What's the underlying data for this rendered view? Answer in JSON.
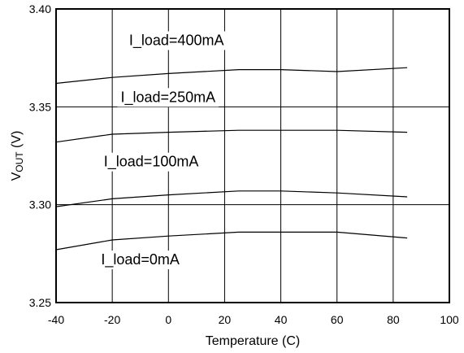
{
  "chart_data": {
    "type": "line",
    "title": "",
    "xlabel": "Temperature (C)",
    "ylabel": {
      "main": "V",
      "subscript": "OUT",
      "unit": " (V)"
    },
    "xlim": [
      -40,
      100
    ],
    "ylim": [
      3.25,
      3.4
    ],
    "x_ticks": [
      -40,
      -20,
      0,
      20,
      40,
      60,
      80,
      100
    ],
    "x_tick_labels": [
      "-40",
      "-20",
      "0",
      "20",
      "40",
      "60",
      "80",
      "100"
    ],
    "y_ticks": [
      3.25,
      3.3,
      3.35,
      3.4
    ],
    "y_tick_labels": [
      "3.25",
      "3.30",
      "3.35",
      "3.40"
    ],
    "x_grid": [
      -20,
      0,
      20,
      40,
      60,
      80
    ],
    "y_grid": [
      3.3,
      3.35
    ],
    "grid": true,
    "legend": "none",
    "series": [
      {
        "x": [
          -40,
          -20,
          0,
          25,
          40,
          60,
          85
        ],
        "values": [
          3.277,
          3.282,
          3.284,
          3.286,
          3.286,
          3.286,
          3.283
        ]
      },
      {
        "x": [
          -40,
          -20,
          0,
          25,
          40,
          60,
          85
        ],
        "values": [
          3.299,
          3.303,
          3.305,
          3.307,
          3.307,
          3.306,
          3.304
        ]
      },
      {
        "x": [
          -40,
          -20,
          0,
          25,
          40,
          60,
          85
        ],
        "values": [
          3.332,
          3.336,
          3.337,
          3.338,
          3.338,
          3.338,
          3.337
        ]
      },
      {
        "x": [
          -40,
          -20,
          0,
          25,
          40,
          60,
          85
        ],
        "values": [
          3.362,
          3.365,
          3.367,
          3.369,
          3.369,
          3.368,
          3.37
        ]
      }
    ],
    "annotations": [
      {
        "text": "I_load=400mA",
        "x": -14,
        "y": 3.384
      },
      {
        "text": "I_load=250mA",
        "x": -17,
        "y": 3.355
      },
      {
        "text": "I_load=100mA",
        "x": -23,
        "y": 3.322
      },
      {
        "text": "I_load=0mA",
        "x": -24,
        "y": 3.272
      }
    ],
    "colors": {
      "line": "#000000",
      "grid": "#000000",
      "background": "#ffffff"
    }
  }
}
